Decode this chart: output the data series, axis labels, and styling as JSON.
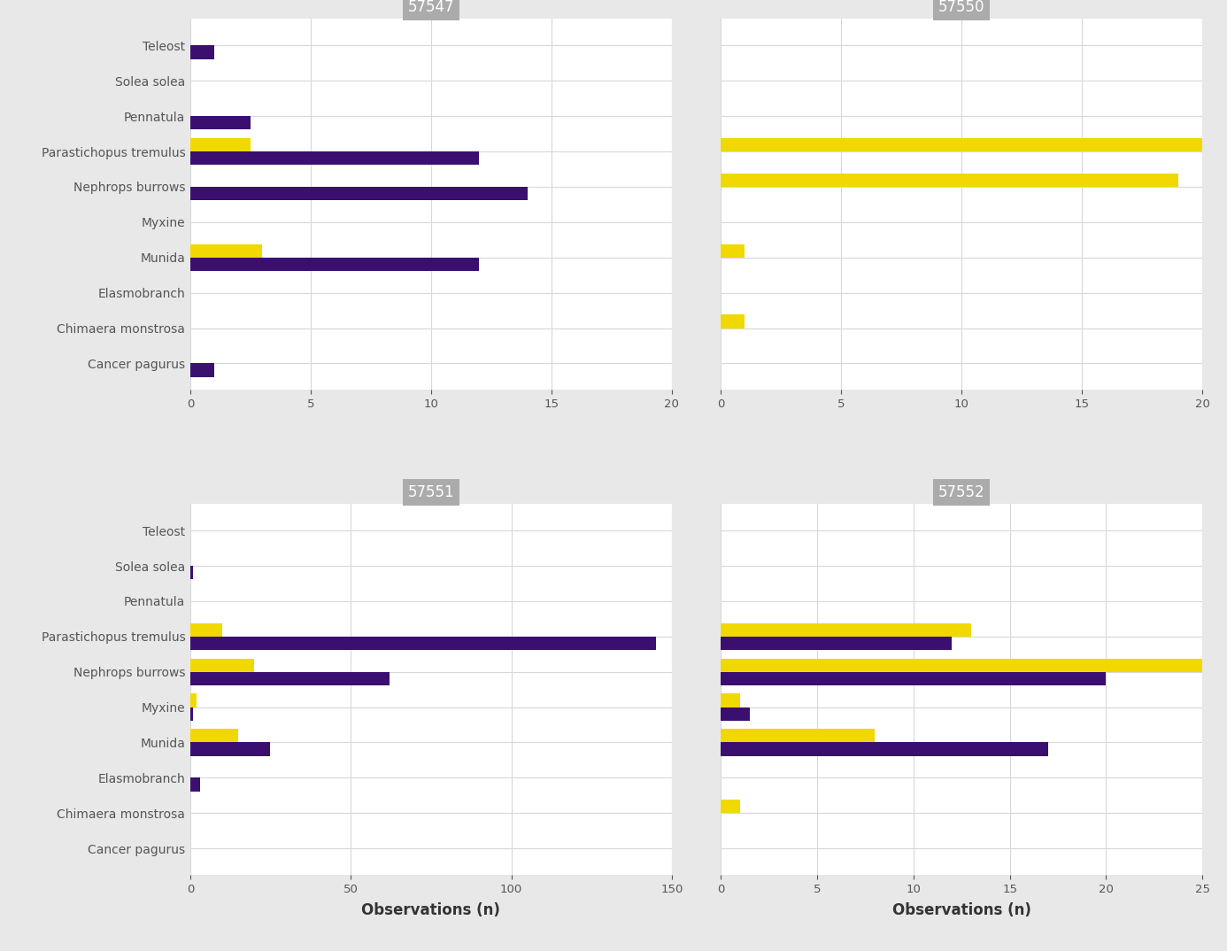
{
  "taxa": [
    "Teleost",
    "Solea solea",
    "Pennatula",
    "Parastichopus tremulus",
    "Nephrops burrows",
    "Myxine",
    "Munida",
    "Elasmobranch",
    "Chimaera monstrosa",
    "Cancer pagurus"
  ],
  "panels": [
    {
      "title": "57547",
      "xlim": [
        0,
        20
      ],
      "xticks": [
        0,
        5,
        10,
        15,
        20
      ],
      "data": {
        "Teleost": {
          "purple": 1.0,
          "yellow": 0
        },
        "Solea solea": {
          "purple": 0,
          "yellow": 0
        },
        "Pennatula": {
          "purple": 2.5,
          "yellow": 0
        },
        "Parastichopus tremulus": {
          "purple": 12.0,
          "yellow": 2.5
        },
        "Nephrops burrows": {
          "purple": 14.0,
          "yellow": 0
        },
        "Myxine": {
          "purple": 0,
          "yellow": 0
        },
        "Munida": {
          "purple": 12.0,
          "yellow": 3.0
        },
        "Elasmobranch": {
          "purple": 0,
          "yellow": 0
        },
        "Chimaera monstrosa": {
          "purple": 0,
          "yellow": 0
        },
        "Cancer pagurus": {
          "purple": 1.0,
          "yellow": 0
        }
      }
    },
    {
      "title": "57550",
      "xlim": [
        0,
        20
      ],
      "xticks": [
        0,
        5,
        10,
        15,
        20
      ],
      "data": {
        "Teleost": {
          "purple": 0,
          "yellow": 0
        },
        "Solea solea": {
          "purple": 0,
          "yellow": 0
        },
        "Pennatula": {
          "purple": 0,
          "yellow": 0
        },
        "Parastichopus tremulus": {
          "purple": 0,
          "yellow": 20.0
        },
        "Nephrops burrows": {
          "purple": 0,
          "yellow": 19.0
        },
        "Myxine": {
          "purple": 0,
          "yellow": 0
        },
        "Munida": {
          "purple": 0,
          "yellow": 1.0
        },
        "Elasmobranch": {
          "purple": 0,
          "yellow": 0
        },
        "Chimaera monstrosa": {
          "purple": 0,
          "yellow": 1.0
        },
        "Cancer pagurus": {
          "purple": 0,
          "yellow": 0
        }
      }
    },
    {
      "title": "57551",
      "xlim": [
        0,
        150
      ],
      "xticks": [
        0,
        50,
        100,
        150
      ],
      "data": {
        "Teleost": {
          "purple": 0,
          "yellow": 0
        },
        "Solea solea": {
          "purple": 1.0,
          "yellow": 0
        },
        "Pennatula": {
          "purple": 0,
          "yellow": 0
        },
        "Parastichopus tremulus": {
          "purple": 145.0,
          "yellow": 10.0
        },
        "Nephrops burrows": {
          "purple": 62.0,
          "yellow": 20.0
        },
        "Myxine": {
          "purple": 1.0,
          "yellow": 2.0
        },
        "Munida": {
          "purple": 25.0,
          "yellow": 15.0
        },
        "Elasmobranch": {
          "purple": 3.0,
          "yellow": 0
        },
        "Chimaera monstrosa": {
          "purple": 0,
          "yellow": 0
        },
        "Cancer pagurus": {
          "purple": 0,
          "yellow": 0
        }
      }
    },
    {
      "title": "57552",
      "xlim": [
        0,
        25
      ],
      "xticks": [
        0,
        5,
        10,
        15,
        20,
        25
      ],
      "data": {
        "Teleost": {
          "purple": 0,
          "yellow": 0
        },
        "Solea solea": {
          "purple": 0,
          "yellow": 0
        },
        "Pennatula": {
          "purple": 0,
          "yellow": 0
        },
        "Parastichopus tremulus": {
          "purple": 12.0,
          "yellow": 13.0
        },
        "Nephrops burrows": {
          "purple": 20.0,
          "yellow": 25.0
        },
        "Myxine": {
          "purple": 1.5,
          "yellow": 1.0
        },
        "Munida": {
          "purple": 17.0,
          "yellow": 8.0
        },
        "Elasmobranch": {
          "purple": 0,
          "yellow": 0
        },
        "Chimaera monstrosa": {
          "purple": 0,
          "yellow": 1.0
        },
        "Cancer pagurus": {
          "purple": 0,
          "yellow": 0
        }
      }
    }
  ],
  "purple_color": "#3B0F6F",
  "yellow_color": "#F0D800",
  "panel_bg": "#FFFFFF",
  "title_bg": "#ABABAB",
  "title_fg": "#FFFFFF",
  "grid_color": "#D8D8D8",
  "figure_bg": "#E8E8E8",
  "ylabel_color": "#555555",
  "xlabel_color": "#333333",
  "bar_height": 0.38,
  "xlabel": "Observations (n)",
  "label_fontsize": 10,
  "title_fontsize": 12,
  "tick_fontsize": 9.5
}
